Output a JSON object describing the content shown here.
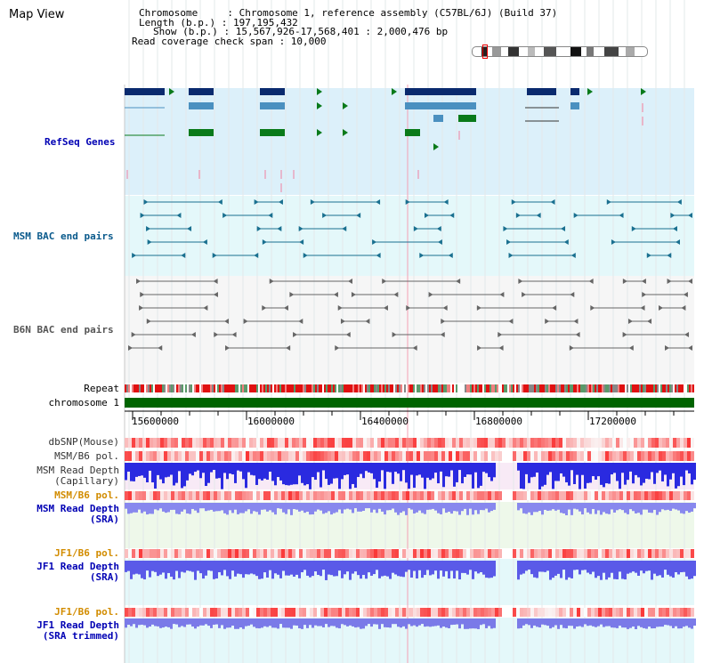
{
  "page": {
    "title": "Map View"
  },
  "header": {
    "chromosome_label": "Chromosome     : Chromosome 1, reference assembly (C57BL/6J) (Build 37)",
    "length_label": "Length (b.p.) : 197,195,432",
    "show_label": "Show (b.p.) : 15,567,926-17,568,401 : 2,000,476 bp",
    "coverage_label": "Read coverage check span : 10,000"
  },
  "tracks": {
    "refseq": "RefSeq Genes",
    "msm_bac": "MSM BAC end pairs",
    "b6n_bac": "B6N BAC end pairs",
    "repeat": "Repeat",
    "chromosome": "chromosome 1",
    "dbsnp": "dbSNP(Mouse)",
    "msm_b6_pol_1": "MSM/B6 pol.",
    "msm_read_depth_cap": "MSM Read Depth\n(Capillary)",
    "msm_b6_pol_2": "MSM/B6 pol.",
    "msm_read_depth_sra": "MSM Read Depth\n(SRA)",
    "jf1_b6_pol_1": "JF1/B6 pol.",
    "jf1_read_depth_sra": "JF1 Read Depth\n(SRA)",
    "jf1_b6_pol_2": "JF1/B6 pol.",
    "jf1_read_depth_trimmed": "JF1 Read Depth\n(SRA trimmed)"
  },
  "axis": {
    "ticks": [
      "15600000",
      "16000000",
      "16400000",
      "16800000",
      "17200000"
    ]
  },
  "colors": {
    "refseq_bg": "#dcf0fa",
    "msm_bg": "#e4f8fa",
    "b6n_bg": "#f6f6f6",
    "chromosome_bar": "#006400",
    "label_blue": "#0000b4",
    "label_orange": "#d28c00",
    "label_teal": "#0a5a8c",
    "label_gray": "#555555"
  }
}
